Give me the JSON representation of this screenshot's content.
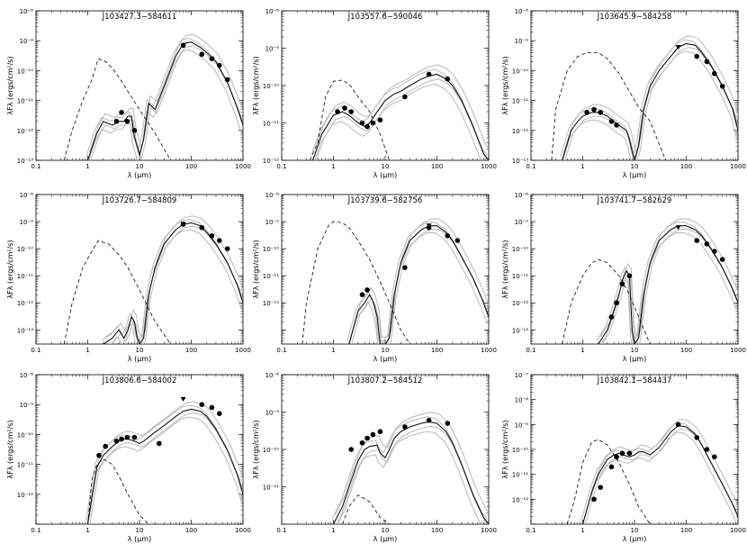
{
  "chart_data": [
    {
      "type": "line",
      "title": "J103427.3−584611",
      "xlabel": "λ (μm)",
      "ylabel": "λFλ (ergs/cm²/s)",
      "xlim": [
        0.1,
        1000
      ],
      "ylim": [
        1e-13,
        1e-08
      ],
      "x_ticks": [
        "0.1",
        "1",
        "10",
        "100",
        "1000"
      ],
      "y_ticks": [
        "10⁻¹³",
        "10⁻¹²",
        "10⁻¹¹",
        "10⁻¹⁰",
        "10⁻⁹",
        "10⁻⁸"
      ],
      "stellar": {
        "x": [
          0.35,
          0.5,
          0.8,
          1.2,
          1.6,
          2.2,
          3,
          4,
          6,
          10,
          20,
          40
        ],
        "y": [
          1e-13,
          1e-12,
          1e-11,
          5e-11,
          2.5e-10,
          2e-10,
          1.2e-10,
          6e-11,
          2e-11,
          5e-12,
          8e-13,
          1e-13
        ]
      },
      "models": [
        {
          "x": [
            1,
            1.5,
            2,
            3,
            4,
            5,
            6,
            7,
            8,
            9,
            10,
            12,
            15,
            20,
            30,
            50,
            70,
            100,
            150,
            200,
            300,
            500,
            800,
            1000
          ],
          "y": [
            1e-13,
            8e-13,
            2e-12,
            1.5e-12,
            2e-12,
            2e-12,
            3e-12,
            3e-12,
            6e-13,
            3e-13,
            1.5e-13,
            5e-13,
            8e-12,
            5e-12,
            3e-11,
            3e-10,
            8e-10,
            9e-10,
            6e-10,
            4e-10,
            2e-10,
            4e-11,
            5e-12,
            1.5e-12
          ]
        }
      ],
      "points": {
        "x": [
          3.6,
          4.5,
          5.8,
          8.0,
          70,
          160,
          250,
          350,
          500
        ],
        "y": [
          2e-12,
          4e-12,
          2e-12,
          1e-12,
          7e-10,
          3.5e-10,
          2.5e-10,
          1.5e-10,
          5e-11
        ]
      },
      "upper_limits": {
        "x": [],
        "y": []
      }
    },
    {
      "type": "line",
      "title": "J103557.6−590046",
      "xlabel": "λ (μm)",
      "ylabel": "λFλ (ergs/cm²/s)",
      "xlim": [
        0.1,
        1000
      ],
      "ylim": [
        1e-12,
        1e-08
      ],
      "x_ticks": [
        "0.1",
        "1",
        "10",
        "100",
        "1000"
      ],
      "y_ticks": [
        "10⁻¹²",
        "10⁻¹¹",
        "10⁻¹⁰",
        "10⁻⁹",
        "10⁻⁸"
      ],
      "stellar": {
        "x": [
          0.35,
          0.5,
          0.7,
          1,
          1.5,
          2,
          3,
          5,
          8,
          12
        ],
        "y": [
          1e-12,
          3e-12,
          5e-11,
          1.3e-10,
          1.4e-10,
          1.1e-10,
          5e-11,
          2e-11,
          5e-12,
          1e-12
        ]
      },
      "models": [
        {
          "x": [
            0.4,
            0.6,
            1,
            1.5,
            2,
            3,
            4,
            5,
            7,
            10,
            15,
            20,
            30,
            50,
            70,
            100,
            150,
            200,
            300,
            500,
            800,
            1000
          ],
          "y": [
            1e-12,
            5e-12,
            1.6e-11,
            2e-11,
            1.6e-11,
            1e-11,
            8e-12,
            1e-11,
            2e-11,
            4e-11,
            6e-11,
            7e-11,
            1e-10,
            1.5e-10,
            1.8e-10,
            2e-10,
            1.5e-10,
            1e-10,
            4e-11,
            8e-12,
            1.5e-12,
            1e-12
          ]
        }
      ],
      "points": {
        "x": [
          1.2,
          1.65,
          2.2,
          3.6,
          4.5,
          5.8,
          8,
          24,
          70,
          160
        ],
        "y": [
          2e-11,
          2.5e-11,
          2e-11,
          1e-11,
          8e-12,
          1e-11,
          1.2e-11,
          5e-11,
          2e-10,
          1.5e-10
        ]
      },
      "upper_limits": {
        "x": [],
        "y": []
      }
    },
    {
      "type": "line",
      "title": "J103645.9−584258",
      "xlabel": "λ (μm)",
      "ylabel": "λFλ (ergs/cm²/s)",
      "xlim": [
        0.1,
        1000
      ],
      "ylim": [
        1e-13,
        1e-08
      ],
      "x_ticks": [
        "0.1",
        "1",
        "10",
        "100",
        "1000"
      ],
      "y_ticks": [
        "10⁻¹³",
        "10⁻¹²",
        "10⁻¹¹",
        "10⁻¹⁰",
        "10⁻⁹",
        "10⁻⁸"
      ],
      "stellar": {
        "x": [
          0.25,
          0.3,
          0.5,
          0.8,
          1.2,
          2,
          3,
          5,
          8,
          12,
          20,
          40
        ],
        "y": [
          1e-13,
          5e-12,
          1e-10,
          3e-10,
          4e-10,
          4e-10,
          2.5e-10,
          8e-11,
          2e-11,
          6e-12,
          2e-12,
          1e-13
        ]
      },
      "models": [
        {
          "x": [
            0.4,
            0.6,
            0.8,
            1,
            1.5,
            2,
            3,
            4,
            5,
            7,
            8,
            9,
            10,
            12,
            15,
            20,
            30,
            50,
            70,
            100,
            150,
            200,
            300,
            500,
            800,
            1000
          ],
          "y": [
            1e-13,
            1e-12,
            2e-12,
            3e-12,
            4e-12,
            4e-12,
            3e-12,
            2e-12,
            1.5e-12,
            1e-12,
            5e-13,
            2e-13,
            1e-13,
            3e-13,
            5e-12,
            3e-11,
            1e-10,
            3e-10,
            6e-10,
            8e-10,
            7e-10,
            4e-10,
            1.5e-10,
            3e-11,
            5e-12,
            1e-12
          ]
        }
      ],
      "points": {
        "x": [
          1.2,
          1.65,
          2.2,
          3.6,
          4.5,
          160,
          250,
          350,
          500
        ],
        "y": [
          4e-12,
          5e-12,
          4e-12,
          2e-12,
          1.5e-12,
          3e-10,
          2e-10,
          8e-11,
          3e-11
        ]
      },
      "upper_limits": {
        "x": [
          70
        ],
        "y": [
          6e-10
        ]
      }
    },
    {
      "type": "line",
      "title": "J103726.7−584809",
      "xlabel": "λ (μm)",
      "ylabel": "λFλ (ergs/cm²/s)",
      "xlim": [
        0.1,
        1000
      ],
      "ylim": [
        3e-14,
        1e-08
      ],
      "x_ticks": [
        "0.1",
        "1",
        "10",
        "100",
        "1000"
      ],
      "y_ticks": [
        "10⁻¹³",
        "10⁻¹²",
        "10⁻¹¹",
        "10⁻¹⁰",
        "10⁻⁹",
        "10⁻⁸"
      ],
      "stellar": {
        "x": [
          0.35,
          0.5,
          0.8,
          1.2,
          1.6,
          2.5,
          4,
          6,
          10,
          20,
          40
        ],
        "y": [
          3e-14,
          1e-12,
          2e-11,
          8e-11,
          2e-10,
          1.5e-10,
          6e-11,
          2e-11,
          3e-12,
          2e-13,
          3e-14
        ]
      },
      "models": [
        {
          "x": [
            2,
            3,
            4,
            5,
            6,
            7,
            8,
            9,
            10,
            12,
            15,
            20,
            30,
            50,
            70,
            100,
            150,
            200,
            300,
            500,
            800,
            1000
          ],
          "y": [
            3e-14,
            5e-14,
            1e-13,
            5e-14,
            1e-13,
            3e-13,
            2e-13,
            5e-14,
            3e-14,
            5e-14,
            2e-12,
            2e-11,
            1.5e-10,
            5e-10,
            8e-10,
            9e-10,
            7e-10,
            4e-10,
            1.5e-10,
            3e-11,
            4e-12,
            1e-12
          ]
        }
      ],
      "points": {
        "x": [
          70,
          160,
          250,
          350,
          500
        ],
        "y": [
          8e-10,
          6e-10,
          3e-10,
          2e-10,
          1e-10
        ]
      },
      "upper_limits": {
        "x": [
          70
        ],
        "y": [
          8e-10
        ]
      }
    },
    {
      "type": "line",
      "title": "J103739.6−582756",
      "xlabel": "λ (μm)",
      "ylabel": "λFλ (ergs/cm²/s)",
      "xlim": [
        0.1,
        1000
      ],
      "ylim": [
        3e-14,
        1e-08
      ],
      "x_ticks": [
        "0.1",
        "1",
        "10",
        "100",
        "1000"
      ],
      "y_ticks": [
        "10⁻¹²",
        "10⁻¹¹",
        "10⁻¹⁰",
        "10⁻⁹",
        "10⁻⁸"
      ],
      "stellar": {
        "x": [
          0.25,
          0.3,
          0.5,
          0.8,
          1,
          1.5,
          2,
          3,
          5,
          8,
          12,
          20,
          30
        ],
        "y": [
          3e-14,
          1e-12,
          1e-10,
          7e-10,
          1e-09,
          9e-10,
          6e-10,
          2e-10,
          4e-11,
          6e-12,
          1e-12,
          1e-13,
          3e-14
        ]
      },
      "models": [
        {
          "x": [
            2,
            3,
            4,
            5,
            6,
            7,
            8,
            9,
            10,
            12,
            15,
            20,
            30,
            50,
            70,
            100,
            150,
            200,
            300,
            500,
            800,
            1000
          ],
          "y": [
            3e-14,
            5e-13,
            1e-12,
            2e-12,
            1e-12,
            3e-13,
            3e-14,
            3e-14,
            3e-14,
            5e-14,
            2e-12,
            3e-11,
            2e-10,
            5e-10,
            7e-10,
            7e-10,
            4e-10,
            2e-10,
            5e-11,
            8e-12,
            1e-12,
            3e-13
          ]
        }
      ],
      "points": {
        "x": [
          3.6,
          4.5,
          24,
          70,
          160,
          250
        ],
        "y": [
          2e-12,
          3e-12,
          2e-11,
          6e-10,
          3e-10,
          2e-10
        ]
      },
      "upper_limits": {
        "x": [
          70
        ],
        "y": [
          7e-10
        ]
      }
    },
    {
      "type": "line",
      "title": "J103741.7−582629",
      "xlabel": "λ (μm)",
      "ylabel": "λFλ (ergs/cm²/s)",
      "xlim": [
        0.1,
        1000
      ],
      "ylim": [
        3e-14,
        1e-08
      ],
      "x_ticks": [
        "0.1",
        "1",
        "10",
        "100",
        "1000"
      ],
      "y_ticks": [
        "10⁻¹³",
        "10⁻¹²",
        "10⁻¹¹",
        "10⁻¹⁰",
        "10⁻⁹",
        "10⁻⁸"
      ],
      "stellar": {
        "x": [
          0.4,
          0.6,
          1,
          1.5,
          2,
          3,
          5,
          8,
          12,
          20,
          40
        ],
        "y": [
          3e-14,
          1e-12,
          1e-11,
          3e-11,
          4e-11,
          3e-11,
          1e-11,
          2e-12,
          3e-13,
          3e-14,
          3e-14
        ]
      },
      "models": [
        {
          "x": [
            2,
            3,
            4,
            5,
            6,
            7,
            8,
            9,
            10,
            12,
            15,
            20,
            30,
            50,
            70,
            100,
            150,
            200,
            300,
            500,
            800,
            1000
          ],
          "y": [
            3e-14,
            1e-13,
            5e-13,
            2e-12,
            8e-12,
            1.5e-11,
            1e-11,
            1e-13,
            3e-14,
            5e-14,
            2e-12,
            3e-11,
            2e-10,
            5e-10,
            7e-10,
            7e-10,
            5e-10,
            3e-10,
            1e-10,
            2e-11,
            3e-12,
            1e-12
          ]
        }
      ],
      "points": {
        "x": [
          3.6,
          4.5,
          5.8,
          8,
          160,
          250,
          350,
          500
        ],
        "y": [
          3e-13,
          1e-12,
          5e-12,
          1e-11,
          2e-10,
          1.5e-10,
          8e-11,
          4e-11
        ]
      },
      "upper_limits": {
        "x": [
          70
        ],
        "y": [
          6e-10
        ]
      }
    },
    {
      "type": "line",
      "title": "J103806.6−584002",
      "xlabel": "λ (μm)",
      "ylabel": "λFλ (ergs/cm²/s)",
      "xlim": [
        0.1,
        1000
      ],
      "ylim": [
        1e-13,
        1e-08
      ],
      "x_ticks": [
        "0.1",
        "1",
        "10",
        "100",
        "1000"
      ],
      "y_ticks": [
        "10⁻¹²",
        "10⁻¹¹",
        "10⁻¹⁰",
        "10⁻⁹",
        "10⁻⁸"
      ],
      "stellar": {
        "x": [
          1,
          1.2,
          1.5,
          2,
          3,
          4,
          6,
          10,
          15
        ],
        "y": [
          1e-13,
          3e-12,
          1e-11,
          1.5e-11,
          1e-11,
          4e-12,
          1e-12,
          2e-13,
          1e-13
        ]
      },
      "models": [
        {
          "x": [
            1,
            1.2,
            1.5,
            2,
            3,
            4,
            5,
            6,
            8,
            10,
            12,
            15,
            20,
            30,
            50,
            70,
            100,
            150,
            200,
            300,
            500,
            800,
            1000
          ],
          "y": [
            1e-13,
            8e-13,
            8e-12,
            2e-11,
            4e-11,
            6e-11,
            7e-11,
            7e-11,
            6e-11,
            5e-11,
            6e-11,
            8e-11,
            1.2e-10,
            2e-10,
            4e-10,
            6e-10,
            7e-10,
            6e-10,
            4e-10,
            1.5e-10,
            3e-11,
            4e-12,
            1e-12
          ]
        }
      ],
      "points": {
        "x": [
          1.65,
          2.2,
          3.6,
          4.5,
          5.8,
          8,
          24,
          160,
          250,
          350
        ],
        "y": [
          2e-11,
          4e-11,
          6e-11,
          7e-11,
          8e-11,
          8e-11,
          5e-11,
          1e-09,
          8e-10,
          5e-10
        ]
      },
      "upper_limits": {
        "x": [
          70
        ],
        "y": [
          1.5e-09
        ]
      }
    },
    {
      "type": "line",
      "title": "J103807.2−584512",
      "xlabel": "λ (μm)",
      "ylabel": "λFλ (ergs/cm²/s)",
      "xlim": [
        0.1,
        1000
      ],
      "ylim": [
        1e-12,
        1e-08
      ],
      "x_ticks": [
        "0.1",
        "1",
        "10",
        "100",
        "1000"
      ],
      "y_ticks": [
        "10⁻¹¹",
        "10⁻¹⁰",
        "10⁻⁹",
        "10⁻⁸"
      ],
      "stellar": {
        "x": [
          1.5,
          2,
          3,
          5,
          8,
          12
        ],
        "y": [
          1e-12,
          3e-12,
          6e-12,
          4e-12,
          1.5e-12,
          1e-12
        ]
      },
      "models": [
        {
          "x": [
            1,
            1.5,
            2,
            3,
            4,
            5,
            7,
            8,
            10,
            12,
            15,
            20,
            30,
            50,
            70,
            100,
            150,
            200,
            300,
            500,
            800,
            1000
          ],
          "y": [
            1e-12,
            3e-12,
            1e-11,
            5e-11,
            1e-10,
            1.2e-10,
            1.3e-10,
            8e-11,
            6e-11,
            1e-10,
            2e-10,
            3e-10,
            4e-10,
            5e-10,
            5.5e-10,
            5e-10,
            3e-10,
            1.5e-10,
            4e-11,
            6e-12,
            1.5e-12,
            1e-12
          ]
        }
      ],
      "points": {
        "x": [
          2.2,
          3.6,
          4.5,
          5.8,
          8,
          24,
          70,
          160
        ],
        "y": [
          1e-10,
          1.5e-10,
          2e-10,
          2.5e-10,
          3e-10,
          4e-10,
          6e-10,
          5e-10
        ]
      },
      "upper_limits": {
        "x": [],
        "y": []
      }
    },
    {
      "type": "line",
      "title": "J103842.1−584437",
      "xlabel": "λ (μm)",
      "ylabel": "λFλ (ergs/cm²/s)",
      "xlim": [
        0.1,
        1000
      ],
      "ylim": [
        1e-13,
        1e-07
      ],
      "x_ticks": [
        "0.1",
        "1",
        "10",
        "100",
        "1000"
      ],
      "y_ticks": [
        "10⁻¹²",
        "10⁻¹¹",
        "10⁻¹⁰",
        "10⁻⁹",
        "10⁻⁸",
        "10⁻⁷"
      ],
      "stellar": {
        "x": [
          0.5,
          0.7,
          1,
          1.5,
          2,
          3,
          5,
          8,
          12,
          20
        ],
        "y": [
          1e-13,
          1e-12,
          3e-11,
          2e-10,
          2.5e-10,
          1.5e-10,
          3e-11,
          4e-12,
          5e-13,
          1e-13
        ]
      },
      "models": [
        {
          "x": [
            1,
            1.5,
            2,
            3,
            4,
            5,
            6,
            8,
            10,
            12,
            15,
            20,
            30,
            50,
            70,
            100,
            150,
            200,
            300,
            500,
            800,
            1000
          ],
          "y": [
            1e-13,
            2e-12,
            1e-11,
            4e-11,
            6e-11,
            7e-11,
            6e-11,
            5e-11,
            6e-11,
            8e-11,
            8e-11,
            6e-11,
            1.2e-10,
            5e-10,
            9e-10,
            8e-10,
            4e-10,
            1.5e-10,
            3e-11,
            4e-12,
            6e-13,
            2e-13
          ]
        }
      ],
      "points": {
        "x": [
          1.65,
          2.2,
          3.6,
          4.5,
          5.8,
          8,
          70,
          160,
          250,
          350
        ],
        "y": [
          1e-12,
          3e-12,
          2e-11,
          5e-11,
          7e-11,
          7e-11,
          1e-09,
          3e-10,
          1e-10,
          5e-11
        ]
      },
      "upper_limits": {
        "x": [],
        "y": []
      }
    }
  ]
}
